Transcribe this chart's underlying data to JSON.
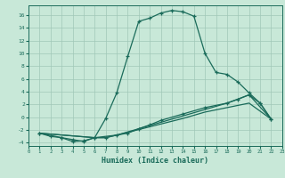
{
  "xlabel": "Humidex (Indice chaleur)",
  "bg_color": "#c8e8d8",
  "line_color": "#1a6b5a",
  "grid_color": "#a0c8b8",
  "xlim": [
    0,
    23
  ],
  "ylim": [
    -4.5,
    17.5
  ],
  "line1_x": [
    1,
    2,
    3,
    4,
    5,
    6,
    7,
    8,
    9,
    10,
    11,
    12,
    13,
    14,
    15,
    16,
    17,
    18,
    19,
    20,
    21,
    22
  ],
  "line1_y": [
    -2.5,
    -3.0,
    -3.2,
    -3.8,
    -3.7,
    -3.2,
    -0.2,
    3.8,
    9.5,
    15.0,
    15.5,
    16.3,
    16.7,
    16.5,
    15.8,
    10.0,
    7.0,
    6.7,
    5.5,
    3.8,
    2.2,
    -0.3
  ],
  "line2_x": [
    1,
    3,
    4,
    5,
    6,
    7,
    8,
    9,
    10,
    11,
    12,
    14,
    16,
    18,
    19,
    20,
    21,
    22
  ],
  "line2_y": [
    -2.5,
    -3.2,
    -3.5,
    -3.8,
    -3.2,
    -3.2,
    -2.8,
    -2.5,
    -1.8,
    -1.2,
    -0.5,
    0.5,
    1.5,
    2.2,
    2.8,
    3.5,
    2.2,
    -0.3
  ],
  "line3_x": [
    1,
    6,
    7,
    8,
    14,
    16,
    18,
    20,
    22
  ],
  "line3_y": [
    -2.5,
    -3.2,
    -3.0,
    -2.8,
    -0.2,
    0.8,
    1.5,
    2.2,
    -0.3
  ],
  "line4_x": [
    1,
    6,
    7,
    8,
    14,
    16,
    18,
    20,
    22
  ],
  "line4_y": [
    -2.5,
    -3.2,
    -3.2,
    -2.8,
    0.2,
    1.2,
    2.2,
    3.5,
    -0.3
  ],
  "yticks": [
    -4,
    -2,
    0,
    2,
    4,
    6,
    8,
    10,
    12,
    14,
    16
  ],
  "xticks": [
    0,
    1,
    2,
    3,
    4,
    5,
    6,
    7,
    8,
    9,
    10,
    11,
    12,
    13,
    14,
    15,
    16,
    17,
    18,
    19,
    20,
    21,
    22,
    23
  ]
}
